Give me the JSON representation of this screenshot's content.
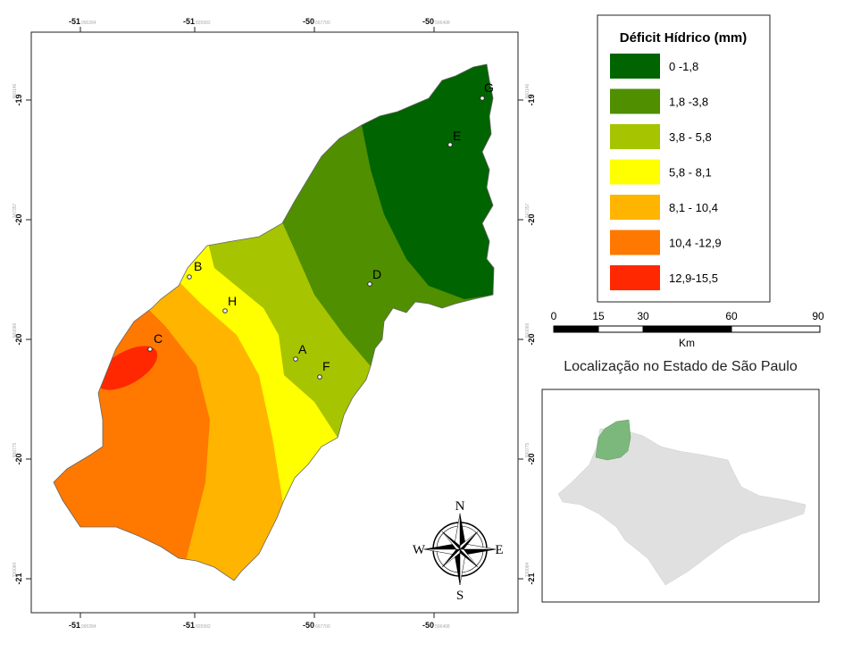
{
  "map": {
    "x_ticks": [
      {
        "label": "-51",
        "sub": "990284"
      },
      {
        "label": "-51",
        "sub": "825992"
      },
      {
        "label": "-50",
        "sub": "667700"
      },
      {
        "label": "-50",
        "sub": "506408"
      }
    ],
    "y_ticks": [
      {
        "label": "-19",
        "sub": "860146"
      },
      {
        "label": "-20",
        "sub": "247357"
      },
      {
        "label": "-20",
        "sub": "660066"
      },
      {
        "label": "-20",
        "sub": "990775"
      },
      {
        "label": "-21",
        "sub": "330084"
      }
    ],
    "points": [
      {
        "id": "G",
        "label": "G"
      },
      {
        "id": "E",
        "label": "E"
      },
      {
        "id": "D",
        "label": "D"
      },
      {
        "id": "B",
        "label": "B"
      },
      {
        "id": "H",
        "label": "H"
      },
      {
        "id": "A",
        "label": "A"
      },
      {
        "id": "F",
        "label": "F"
      },
      {
        "id": "C",
        "label": "C"
      }
    ]
  },
  "legend": {
    "title": "Déficit Hídrico (mm)",
    "items": [
      {
        "label": "0 -1,8",
        "color": "#006400"
      },
      {
        "label": "1,8 -3,8",
        "color": "#4f8f00"
      },
      {
        "label": "3,8 - 5,8",
        "color": "#a6c400"
      },
      {
        "label": "5,8 - 8,1",
        "color": "#ffff00"
      },
      {
        "label": "8,1 - 10,4",
        "color": "#ffb400"
      },
      {
        "label": "10,4 -12,9",
        "color": "#ff7800"
      },
      {
        "label": "12,9-15,5",
        "color": "#ff2800"
      }
    ]
  },
  "scale": {
    "ticks": [
      "0",
      "15",
      "30",
      "60",
      "90"
    ],
    "unit": "Km"
  },
  "compass": {
    "n": "N",
    "s": "S",
    "e": "E",
    "w": "W"
  },
  "inset": {
    "title": "Localização no Estado de São Paulo",
    "state_color": "#e0e0e0",
    "region_color": "#7cb87c"
  }
}
